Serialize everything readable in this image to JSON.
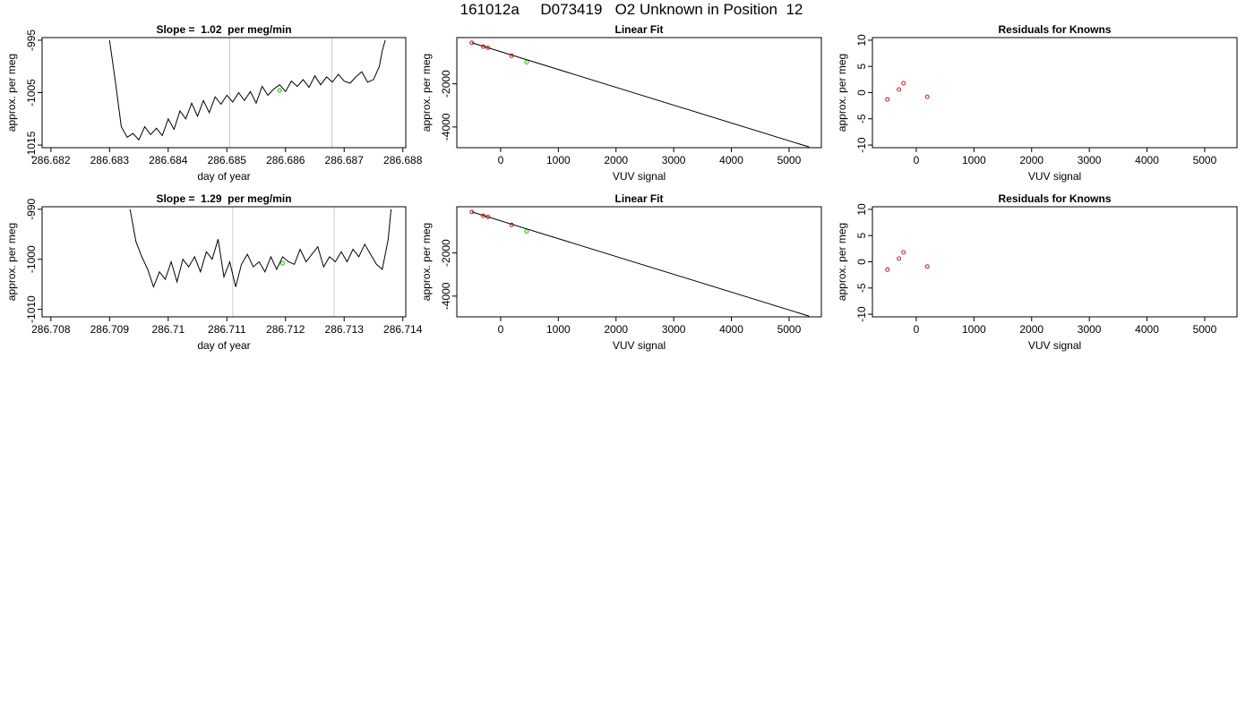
{
  "figure": {
    "title": "161012a     D073419   O2 Unknown in Position  12"
  },
  "colors": {
    "trace": "#000000",
    "unknown_marker": "#00cc00",
    "known_marker": "#cc0000",
    "vertical_guide": "#cccccc"
  },
  "chart_data": [
    {
      "id": "slope-1",
      "type": "line",
      "title": "Slope =  1.02  per meg/min",
      "xlabel": "day of year",
      "ylabel": "approx. per meg",
      "xlim": [
        286.68185,
        286.68805
      ],
      "ylim": [
        -1015.5,
        -994.5
      ],
      "xticks": [
        286.682,
        286.683,
        286.684,
        286.685,
        286.686,
        286.687,
        286.688
      ],
      "yticks": [
        -1015,
        -1005,
        -995
      ],
      "guides_x": [
        286.68505,
        286.68679
      ],
      "series": [
        {
          "x": [
            286.683,
            286.6831,
            286.6832,
            286.6833,
            286.6834,
            286.6835,
            286.6836,
            286.6837,
            286.6838,
            286.6839,
            286.684,
            286.6841,
            286.6842,
            286.6843,
            286.6844,
            286.6845,
            286.6846,
            286.6847,
            286.6848,
            286.6849,
            286.685,
            286.6851,
            286.6852,
            286.6853,
            286.6854,
            286.6855,
            286.6856,
            286.6857,
            286.6858,
            286.6859,
            286.686,
            286.6861,
            286.6862,
            286.6863,
            286.6864,
            286.6865,
            286.6866,
            286.6867,
            286.6868,
            286.6869,
            286.687,
            286.6871,
            286.6872,
            286.6873,
            286.6874,
            286.6875,
            286.6876,
            286.68765,
            286.6877
          ],
          "y": [
            -995.0,
            -1003.0,
            -1011.5,
            -1013.5,
            -1012.8,
            -1014.0,
            -1011.5,
            -1013.0,
            -1011.8,
            -1013.2,
            -1010.0,
            -1012.0,
            -1008.5,
            -1010.0,
            -1007.0,
            -1009.5,
            -1006.5,
            -1008.8,
            -1005.8,
            -1007.2,
            -1005.5,
            -1006.8,
            -1005.0,
            -1006.5,
            -1004.8,
            -1007.0,
            -1003.8,
            -1005.5,
            -1004.3,
            -1003.5,
            -1004.8,
            -1002.8,
            -1003.8,
            -1002.5,
            -1004.0,
            -1001.8,
            -1003.5,
            -1002.0,
            -1003.0,
            -1001.5,
            -1002.8,
            -1003.2,
            -1002.0,
            -1001.0,
            -1003.0,
            -1002.5,
            -1000.0,
            -997.0,
            -995.0
          ],
          "marker": {
            "x": 286.6859,
            "y": -1004.6
          }
        }
      ]
    },
    {
      "id": "fit-1",
      "type": "scatter",
      "title": "Linear Fit",
      "xlabel": "VUV signal",
      "ylabel": "approx. per meg",
      "xlim": [
        -760,
        5560
      ],
      "ylim": [
        -4960,
        140
      ],
      "xticks": [
        0,
        1000,
        2000,
        3000,
        4000,
        5000
      ],
      "yticks": [
        -4000,
        -2000
      ],
      "fit_line": {
        "x": [
          -500,
          5350
        ],
        "y": [
          -100,
          -4930
        ]
      },
      "knowns": {
        "x": [
          -500,
          -300,
          -220,
          190
        ],
        "y": [
          -100,
          -280,
          -330,
          -700
        ]
      },
      "unknown": {
        "x": 450,
        "y": -1000
      }
    },
    {
      "id": "resid-1",
      "type": "scatter",
      "title": "Residuals for Knowns",
      "xlabel": "VUV signal",
      "ylabel": "approx. per meg",
      "xlim": [
        -760,
        5560
      ],
      "ylim": [
        -10.5,
        10.5
      ],
      "xticks": [
        0,
        1000,
        2000,
        3000,
        4000,
        5000
      ],
      "yticks": [
        -10,
        -5,
        0,
        5,
        10
      ],
      "knowns": {
        "x": [
          -500,
          -300,
          -220,
          190
        ],
        "y": [
          -1.3,
          0.6,
          1.8,
          -0.8
        ]
      }
    },
    {
      "id": "slope-2",
      "type": "line",
      "title": "Slope =  1.29  per meg/min",
      "xlabel": "day of year",
      "ylabel": "approx. per meg",
      "xlim": [
        286.70785,
        286.71405
      ],
      "ylim": [
        -1011.5,
        -989.5
      ],
      "xticks": [
        286.708,
        286.709,
        286.71,
        286.711,
        286.712,
        286.713,
        286.714
      ],
      "yticks": [
        -1010,
        -1000,
        -990
      ],
      "guides_x": [
        286.7111,
        286.71283
      ],
      "series": [
        {
          "x": [
            286.70935,
            286.70945,
            286.70955,
            286.70965,
            286.70975,
            286.70985,
            286.70995,
            286.71005,
            286.71015,
            286.71025,
            286.71035,
            286.71045,
            286.71055,
            286.71065,
            286.71075,
            286.71085,
            286.71095,
            286.71105,
            286.71115,
            286.71125,
            286.71135,
            286.71145,
            286.71155,
            286.71165,
            286.71175,
            286.71185,
            286.71195,
            286.71205,
            286.71215,
            286.71225,
            286.71235,
            286.71245,
            286.71255,
            286.71265,
            286.71275,
            286.71285,
            286.71295,
            286.71305,
            286.71315,
            286.71325,
            286.71335,
            286.71345,
            286.71355,
            286.71365,
            286.71375,
            286.7138
          ],
          "y": [
            -990.0,
            -996.5,
            -999.5,
            -1002.0,
            -1005.5,
            -1002.5,
            -1004.0,
            -1000.5,
            -1004.5,
            -1000.0,
            -1001.5,
            -999.5,
            -1002.5,
            -998.5,
            -1000.0,
            -996.0,
            -1003.5,
            -1000.5,
            -1005.5,
            -1001.0,
            -999.0,
            -1001.5,
            -1000.5,
            -1002.5,
            -999.5,
            -1002.0,
            -999.5,
            -1000.5,
            -1001.0,
            -998.0,
            -1000.5,
            -999.0,
            -997.5,
            -1001.5,
            -999.5,
            -1000.5,
            -998.5,
            -1000.5,
            -998.0,
            -999.5,
            -997.0,
            -999.0,
            -1001.0,
            -1002.0,
            -996.0,
            -990.0
          ],
          "marker": {
            "x": 286.71195,
            "y": -1000.8
          }
        }
      ]
    },
    {
      "id": "fit-2",
      "type": "scatter",
      "title": "Linear Fit",
      "xlabel": "VUV signal",
      "ylabel": "approx. per meg",
      "xlim": [
        -760,
        5560
      ],
      "ylim": [
        -4960,
        140
      ],
      "xticks": [
        0,
        1000,
        2000,
        3000,
        4000,
        5000
      ],
      "yticks": [
        -4000,
        -2000
      ],
      "fit_line": {
        "x": [
          -500,
          5350
        ],
        "y": [
          -100,
          -4930
        ]
      },
      "knowns": {
        "x": [
          -500,
          -300,
          -220,
          190
        ],
        "y": [
          -100,
          -280,
          -330,
          -700
        ]
      },
      "unknown": {
        "x": 450,
        "y": -1000
      }
    },
    {
      "id": "resid-2",
      "type": "scatter",
      "title": "Residuals for Knowns",
      "xlabel": "VUV signal",
      "ylabel": "approx. per meg",
      "xlim": [
        -760,
        5560
      ],
      "ylim": [
        -10.5,
        10.5
      ],
      "xticks": [
        0,
        1000,
        2000,
        3000,
        4000,
        5000
      ],
      "yticks": [
        -10,
        -5,
        0,
        5,
        10
      ],
      "knowns": {
        "x": [
          -500,
          -300,
          -220,
          190
        ],
        "y": [
          -1.5,
          0.6,
          1.8,
          -0.9
        ]
      }
    }
  ]
}
